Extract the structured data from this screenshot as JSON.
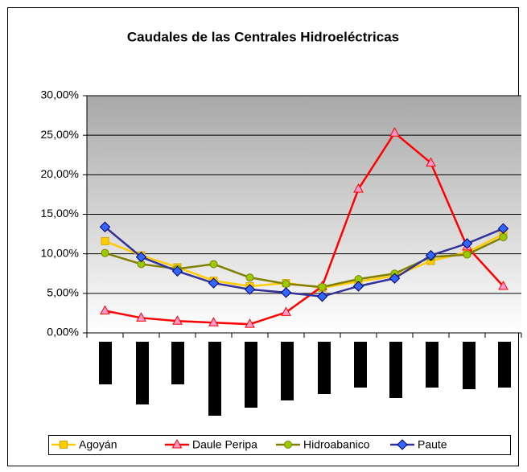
{
  "chart_data": {
    "type": "line",
    "title": "Caudales de las Centrales Hidroeléctricas",
    "categories": [
      null,
      null,
      null,
      null,
      null,
      null,
      null,
      null,
      null,
      null,
      null,
      null
    ],
    "ylim": [
      0,
      30
    ],
    "yticks": [
      {
        "value": 0,
        "label": "0,00%"
      },
      {
        "value": 5,
        "label": "5,00%"
      },
      {
        "value": 10,
        "label": "10,00%"
      },
      {
        "value": 15,
        "label": "15,00%"
      },
      {
        "value": 20,
        "label": "20,00%"
      },
      {
        "value": 25,
        "label": "25,00%"
      },
      {
        "value": 30,
        "label": "30,00%"
      }
    ],
    "grid": true,
    "legend": "bottom",
    "series": [
      {
        "name": "Agoyán",
        "color": "#ffcc00",
        "marker": "square",
        "values": [
          11.6,
          9.8,
          8.3,
          6.6,
          5.9,
          6.3,
          5.7,
          6.5,
          7.2,
          9.1,
          10.2,
          12.5
        ]
      },
      {
        "name": "Daule Peripa",
        "color": "#ff0000",
        "marker": "triangle",
        "values": [
          2.8,
          1.9,
          1.5,
          1.3,
          1.1,
          2.6,
          5.9,
          18.2,
          25.3,
          21.5,
          10.9,
          5.9
        ]
      },
      {
        "name": "Hidroabanico",
        "color": "#808000",
        "marker": "circle",
        "values": [
          10.1,
          8.7,
          8.1,
          8.7,
          7.0,
          6.2,
          5.8,
          6.8,
          7.5,
          9.6,
          9.9,
          12.1
        ]
      },
      {
        "name": "Paute",
        "color": "#333399",
        "marker": "diamond",
        "values": [
          13.4,
          9.6,
          7.8,
          6.3,
          5.5,
          5.1,
          4.6,
          5.9,
          6.9,
          9.8,
          11.3,
          13.2
        ]
      }
    ]
  }
}
